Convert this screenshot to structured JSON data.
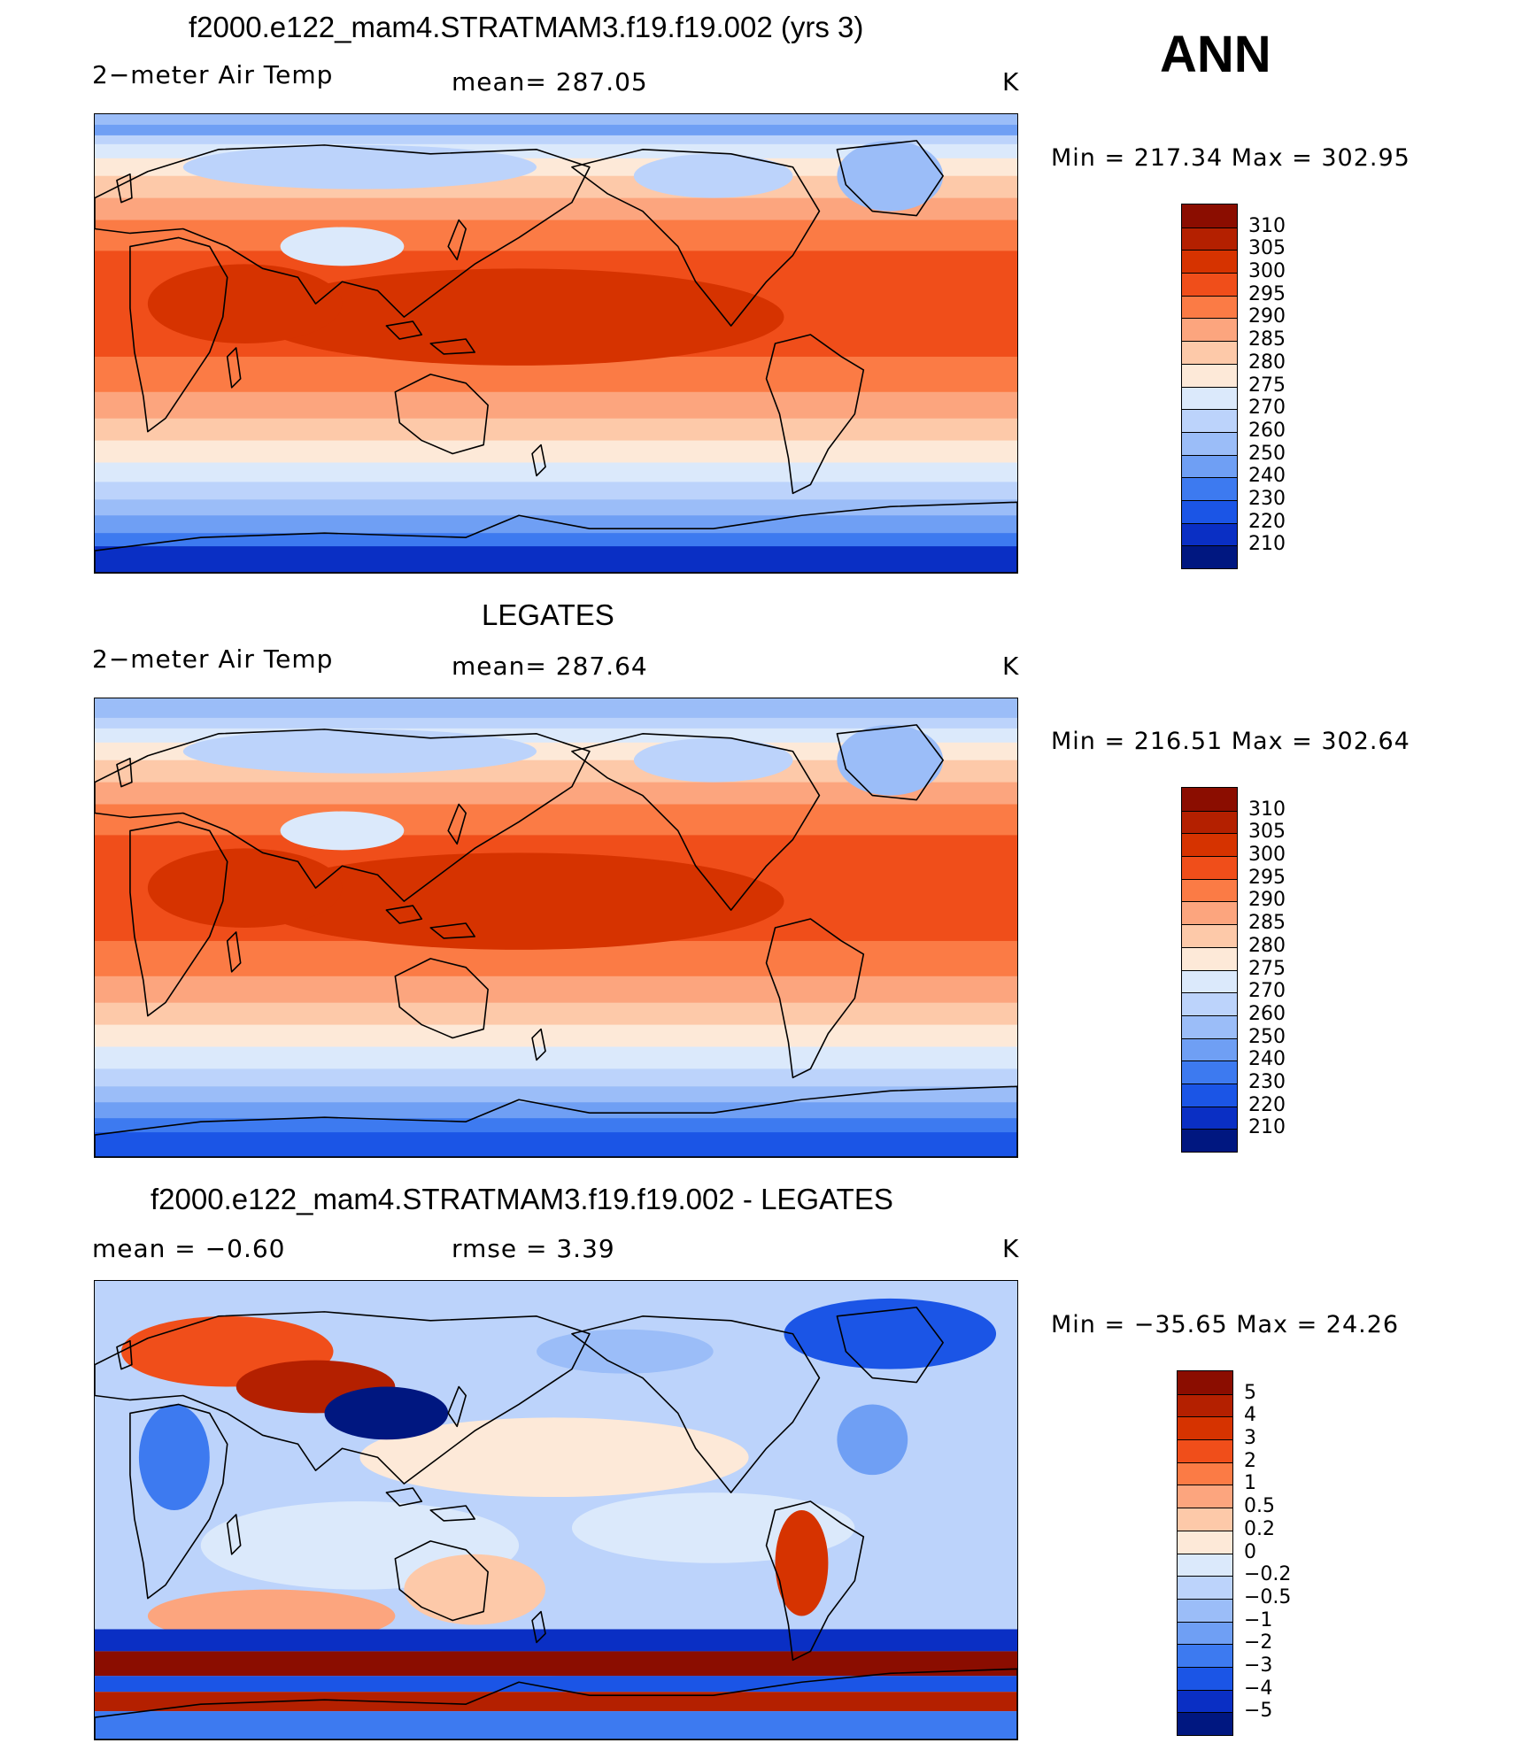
{
  "annual_label": "ANN",
  "panels": [
    {
      "title": "f2000.e122_mam4.STRATMAM3.f19.f19.002 (yrs 3)",
      "left_label": "2−meter Air Temp",
      "center_label": "mean=  287.05",
      "units": "K",
      "minmax": "Min  =  217.34  Max  =  302.95",
      "kind": "model"
    },
    {
      "title": "LEGATES",
      "left_label": "2−meter Air Temp",
      "center_label": "mean=  287.64",
      "units": "K",
      "minmax": "Min  =  216.51  Max  =  302.64",
      "kind": "obs"
    },
    {
      "title": "f2000.e122_mam4.STRATMAM3.f19.f19.002 - LEGATES",
      "left_label": "mean  =    −0.60",
      "center_label": "rmse  =     3.39",
      "units": "K",
      "minmax": "Min  =  −35.65  Max  =    24.26",
      "kind": "diff"
    }
  ],
  "colorbars": {
    "absolute": {
      "labels": [
        "310",
        "305",
        "300",
        "295",
        "290",
        "285",
        "280",
        "275",
        "270",
        "260",
        "250",
        "240",
        "230",
        "220",
        "210"
      ],
      "colors": [
        "#8b0d00",
        "#b42000",
        "#d63300",
        "#f04e1a",
        "#fb7b45",
        "#fca57e",
        "#fdc9a9",
        "#fde9d8",
        "#dbe9fb",
        "#bcd3fb",
        "#9bbdf8",
        "#6f9ff4",
        "#3d7af0",
        "#1b55e6",
        "#0a2fc4",
        "#001780"
      ]
    },
    "difference": {
      "labels": [
        "5",
        "4",
        "3",
        "2",
        "1",
        "0.5",
        "0.2",
        "0",
        "−0.2",
        "−0.5",
        "−1",
        "−2",
        "−3",
        "−4",
        "−5"
      ],
      "colors": [
        "#8b0d00",
        "#b42000",
        "#d63300",
        "#f04e1a",
        "#fb7b45",
        "#fca57e",
        "#fdc9a9",
        "#fde9d8",
        "#dbe9fb",
        "#bcd3fb",
        "#9bbdf8",
        "#6f9ff4",
        "#3d7af0",
        "#1b55e6",
        "#0a2fc4",
        "#001780"
      ]
    }
  }
}
